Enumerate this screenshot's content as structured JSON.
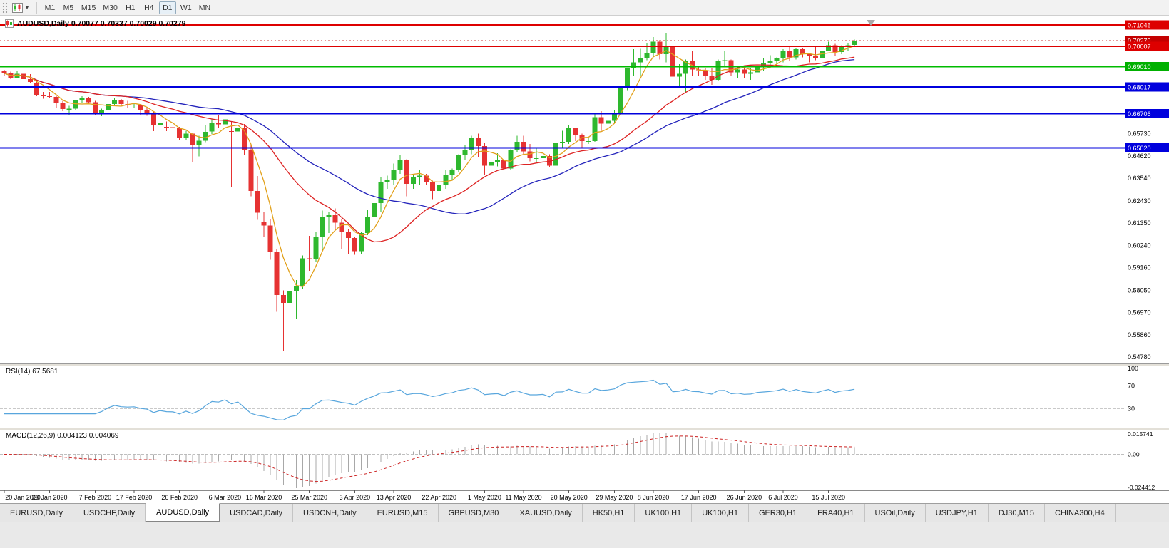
{
  "toolbar": {
    "timeframes": [
      "M1",
      "M5",
      "M15",
      "M30",
      "H1",
      "H4",
      "D1",
      "W1",
      "MN"
    ],
    "active_timeframe": "D1"
  },
  "chart": {
    "title_text": "AUDUSD,Daily 0.70077 0.70337 0.70029 0.70279"
  },
  "indicators": {
    "rsi": {
      "label": "RSI(14) 67.5681",
      "scale_labels": [
        "100",
        "70",
        "30"
      ],
      "levels": [
        70,
        30
      ],
      "line_color": "#58a6dd"
    },
    "macd": {
      "label": "MACD(12,26,9) 0.004123 0.004069",
      "scale_labels": [
        "0.015741",
        "0.00",
        "-0.024412"
      ],
      "histogram_color": "#a8a8a8",
      "signal_color": "#cc2222"
    }
  },
  "price_scale": {
    "plain_labels": [
      {
        "text": "0.65730",
        "price": 0.6573
      },
      {
        "text": "0.64620",
        "price": 0.6462
      },
      {
        "text": "0.63540",
        "price": 0.6354
      },
      {
        "text": "0.62430",
        "price": 0.6243
      },
      {
        "text": "0.61350",
        "price": 0.6135
      },
      {
        "text": "0.60240",
        "price": 0.6024
      },
      {
        "text": "0.59160",
        "price": 0.5916
      },
      {
        "text": "0.58050",
        "price": 0.5805
      },
      {
        "text": "0.56970",
        "price": 0.5697
      },
      {
        "text": "0.55860",
        "price": 0.5586
      },
      {
        "text": "0.54780",
        "price": 0.5478
      }
    ],
    "tags": [
      {
        "text": "0.71046",
        "price": 0.71046,
        "color": "#dd0000",
        "current": false
      },
      {
        "text": "0.70279",
        "price": 0.70279,
        "color": "#c40000",
        "current": true
      },
      {
        "text": "0.70007",
        "price": 0.70007,
        "color": "#dd0000",
        "current": false
      },
      {
        "text": "0.69010",
        "price": 0.6901,
        "color": "#00b000",
        "current": false
      },
      {
        "text": "0.68017",
        "price": 0.68017,
        "color": "#0000dd",
        "current": false
      },
      {
        "text": "0.66706",
        "price": 0.66706,
        "color": "#0000dd",
        "current": false
      },
      {
        "text": "0.65020",
        "price": 0.6502,
        "color": "#0000dd",
        "current": false
      }
    ]
  },
  "tabs": {
    "active_index": 2,
    "items": [
      "EURUSD,Daily",
      "USDCHF,Daily",
      "AUDUSD,Daily",
      "USDCAD,Daily",
      "USDCNH,Daily",
      "EURUSD,M15",
      "GBPUSD,M30",
      "XAUUSD,Daily",
      "HK50,H1",
      "UK100,H1",
      "UK100,H1",
      "GER30,H1",
      "FRA40,H1",
      "USOil,Daily",
      "USDJPY,H1",
      "DJ30,M15",
      "CHINA300,H4"
    ]
  },
  "chart_data": {
    "type": "candlestick",
    "symbol": "AUDUSD",
    "timeframe": "Daily",
    "ohlc_current": {
      "open": 0.70077,
      "high": 0.70337,
      "low": 0.70029,
      "close": 0.70279
    },
    "current_price": 0.70279,
    "ylim": [
      0.5454,
      0.7136
    ],
    "rsi_period": 14,
    "macd_params": {
      "fast": 12,
      "slow": 26,
      "signal": 9,
      "values": [
        0.004123,
        0.004069
      ]
    },
    "rsi_current": 67.5681,
    "colors": {
      "bull": "#2eb82e",
      "bear": "#e63232"
    },
    "moving_averages": [
      {
        "period": 5,
        "color": "#e2a11b"
      },
      {
        "period": 20,
        "color": "#dd2222"
      },
      {
        "period": 34,
        "color": "#2323bb"
      }
    ],
    "levels": [
      {
        "price": 0.71046,
        "color": "#dd0000"
      },
      {
        "price": 0.70007,
        "color": "#dd0000"
      },
      {
        "price": 0.6901,
        "color": "#00bb00"
      },
      {
        "price": 0.68017,
        "color": "#0000dd"
      },
      {
        "price": 0.66706,
        "color": "#0000dd"
      },
      {
        "price": 0.6502,
        "color": "#0000dd"
      }
    ],
    "date_ticks": [
      {
        "t": "20 Jan 2020",
        "i": 0
      },
      {
        "t": "29 Jan 2020",
        "i": 7
      },
      {
        "t": "7 Feb 2020",
        "i": 14
      },
      {
        "t": "17 Feb 2020",
        "i": 20
      },
      {
        "t": "26 Feb 2020",
        "i": 27
      },
      {
        "t": "6 Mar 2020",
        "i": 34
      },
      {
        "t": "16 Mar 2020",
        "i": 40
      },
      {
        "t": "25 Mar 2020",
        "i": 47
      },
      {
        "t": "3 Apr 2020",
        "i": 54
      },
      {
        "t": "13 Apr 2020",
        "i": 60
      },
      {
        "t": "22 Apr 2020",
        "i": 67
      },
      {
        "t": "1 May 2020",
        "i": 74
      },
      {
        "t": "11 May 2020",
        "i": 80
      },
      {
        "t": "20 May 2020",
        "i": 87
      },
      {
        "t": "29 May 2020",
        "i": 94
      },
      {
        "t": "8 Jun 2020",
        "i": 100
      },
      {
        "t": "17 Jun 2020",
        "i": 107
      },
      {
        "t": "26 Jun 2020",
        "i": 114
      },
      {
        "t": "6 Jul 2020",
        "i": 120
      },
      {
        "t": "15 Jul 2020",
        "i": 127
      }
    ],
    "candles": [
      [
        0.6878,
        0.6884,
        0.6856,
        0.6868
      ],
      [
        0.6868,
        0.6876,
        0.684,
        0.6846
      ],
      [
        0.6846,
        0.6879,
        0.6842,
        0.6866
      ],
      [
        0.6866,
        0.687,
        0.6828,
        0.684
      ],
      [
        0.684,
        0.6864,
        0.682,
        0.6826
      ],
      [
        0.682,
        0.6828,
        0.6755,
        0.6762
      ],
      [
        0.6762,
        0.6776,
        0.6744,
        0.6756
      ],
      [
        0.6756,
        0.6777,
        0.6748,
        0.6752
      ],
      [
        0.6752,
        0.6758,
        0.67,
        0.672
      ],
      [
        0.672,
        0.6733,
        0.6682,
        0.6692
      ],
      [
        0.6688,
        0.6708,
        0.6662,
        0.6694
      ],
      [
        0.6694,
        0.6738,
        0.6688,
        0.6734
      ],
      [
        0.6734,
        0.6756,
        0.6725,
        0.6746
      ],
      [
        0.6746,
        0.6753,
        0.6717,
        0.6726
      ],
      [
        0.6726,
        0.6733,
        0.6663,
        0.6672
      ],
      [
        0.6672,
        0.6694,
        0.6658,
        0.6688
      ],
      [
        0.6688,
        0.6736,
        0.6683,
        0.6718
      ],
      [
        0.6718,
        0.6745,
        0.671,
        0.6738
      ],
      [
        0.6738,
        0.6742,
        0.6705,
        0.6718
      ],
      [
        0.6718,
        0.6733,
        0.67,
        0.6712
      ],
      [
        0.6712,
        0.6722,
        0.67,
        0.6714
      ],
      [
        0.6714,
        0.6716,
        0.6665,
        0.669
      ],
      [
        0.669,
        0.6702,
        0.666,
        0.6676
      ],
      [
        0.6676,
        0.668,
        0.6585,
        0.6612
      ],
      [
        0.6612,
        0.664,
        0.6605,
        0.6626
      ],
      [
        0.6605,
        0.6632,
        0.6585,
        0.6604
      ],
      [
        0.6604,
        0.6634,
        0.6586,
        0.66
      ],
      [
        0.66,
        0.6606,
        0.6542,
        0.6552
      ],
      [
        0.6552,
        0.6586,
        0.654,
        0.6572
      ],
      [
        0.6572,
        0.6578,
        0.6434,
        0.6516
      ],
      [
        0.6516,
        0.6562,
        0.646,
        0.6538
      ],
      [
        0.6538,
        0.6612,
        0.653,
        0.6582
      ],
      [
        0.6582,
        0.6645,
        0.657,
        0.6626
      ],
      [
        0.6626,
        0.6665,
        0.66,
        0.6618
      ],
      [
        0.6618,
        0.667,
        0.6585,
        0.6642
      ],
      [
        0.6585,
        0.6632,
        0.6313,
        0.6582
      ],
      [
        0.6582,
        0.6638,
        0.6545,
        0.6602
      ],
      [
        0.6602,
        0.662,
        0.647,
        0.649
      ],
      [
        0.649,
        0.652,
        0.6265,
        0.6292
      ],
      [
        0.6292,
        0.6365,
        0.615,
        0.6186
      ],
      [
        0.614,
        0.6186,
        0.6065,
        0.6122
      ],
      [
        0.6122,
        0.6156,
        0.5955,
        0.5992
      ],
      [
        0.5992,
        0.6005,
        0.57,
        0.5782
      ],
      [
        0.5782,
        0.5805,
        0.551,
        0.5744
      ],
      [
        0.5744,
        0.587,
        0.566,
        0.5802
      ],
      [
        0.5802,
        0.5856,
        0.5665,
        0.5826
      ],
      [
        0.5826,
        0.5976,
        0.581,
        0.5962
      ],
      [
        0.5962,
        0.6072,
        0.59,
        0.5956
      ],
      [
        0.5956,
        0.609,
        0.5945,
        0.6066
      ],
      [
        0.6066,
        0.6196,
        0.6,
        0.6166
      ],
      [
        0.6166,
        0.6186,
        0.6085,
        0.6172
      ],
      [
        0.6172,
        0.6206,
        0.61,
        0.6136
      ],
      [
        0.6136,
        0.6156,
        0.6005,
        0.6092
      ],
      [
        0.6092,
        0.6106,
        0.5985,
        0.6062
      ],
      [
        0.6062,
        0.6066,
        0.598,
        0.5996
      ],
      [
        0.5996,
        0.6092,
        0.5982,
        0.6086
      ],
      [
        0.6086,
        0.62,
        0.6076,
        0.6166
      ],
      [
        0.6166,
        0.6236,
        0.6126,
        0.6232
      ],
      [
        0.6232,
        0.6362,
        0.619,
        0.6336
      ],
      [
        0.6336,
        0.6366,
        0.6302,
        0.6346
      ],
      [
        0.6346,
        0.6426,
        0.6322,
        0.6392
      ],
      [
        0.6392,
        0.647,
        0.6376,
        0.6442
      ],
      [
        0.6442,
        0.6446,
        0.6265,
        0.6326
      ],
      [
        0.6326,
        0.6372,
        0.6302,
        0.6362
      ],
      [
        0.6362,
        0.6396,
        0.6322,
        0.6366
      ],
      [
        0.6366,
        0.6376,
        0.6322,
        0.6336
      ],
      [
        0.6336,
        0.6342,
        0.6252,
        0.6292
      ],
      [
        0.6292,
        0.6332,
        0.6252,
        0.6322
      ],
      [
        0.6322,
        0.6396,
        0.6302,
        0.6372
      ],
      [
        0.6372,
        0.6402,
        0.6342,
        0.6396
      ],
      [
        0.6396,
        0.6472,
        0.6386,
        0.6466
      ],
      [
        0.6466,
        0.6516,
        0.6442,
        0.6492
      ],
      [
        0.6492,
        0.6562,
        0.6472,
        0.6552
      ],
      [
        0.6552,
        0.6572,
        0.6456,
        0.6512
      ],
      [
        0.6512,
        0.6526,
        0.6372,
        0.6416
      ],
      [
        0.6416,
        0.6452,
        0.6396,
        0.6432
      ],
      [
        0.6432,
        0.6476,
        0.6412,
        0.6442
      ],
      [
        0.6442,
        0.6452,
        0.6392,
        0.6402
      ],
      [
        0.6402,
        0.6496,
        0.6392,
        0.6492
      ],
      [
        0.6492,
        0.6562,
        0.6482,
        0.6532
      ],
      [
        0.6532,
        0.6562,
        0.6466,
        0.6486
      ],
      [
        0.6486,
        0.6522,
        0.6436,
        0.6452
      ],
      [
        0.6452,
        0.6506,
        0.6432,
        0.6452
      ],
      [
        0.6452,
        0.6466,
        0.6402,
        0.6462
      ],
      [
        0.6462,
        0.6472,
        0.6406,
        0.6416
      ],
      [
        0.6416,
        0.6536,
        0.6416,
        0.6526
      ],
      [
        0.6526,
        0.6586,
        0.6506,
        0.6532
      ],
      [
        0.6532,
        0.6616,
        0.6522,
        0.6602
      ],
      [
        0.6602,
        0.6602,
        0.6536,
        0.6566
      ],
      [
        0.6566,
        0.6572,
        0.6506,
        0.6536
      ],
      [
        0.6536,
        0.6556,
        0.6522,
        0.6536
      ],
      [
        0.6536,
        0.6676,
        0.6532,
        0.6652
      ],
      [
        0.6652,
        0.6682,
        0.6586,
        0.6622
      ],
      [
        0.6622,
        0.6666,
        0.6606,
        0.6636
      ],
      [
        0.6636,
        0.6686,
        0.6622,
        0.6666
      ],
      [
        0.6666,
        0.6816,
        0.6666,
        0.6796
      ],
      [
        0.6796,
        0.6896,
        0.6786,
        0.6892
      ],
      [
        0.6892,
        0.6986,
        0.6856,
        0.6922
      ],
      [
        0.6922,
        0.6988,
        0.6856,
        0.6942
      ],
      [
        0.6942,
        0.7016,
        0.6932,
        0.6966
      ],
      [
        0.6966,
        0.7046,
        0.6946,
        0.7022
      ],
      [
        0.7022,
        0.7032,
        0.6936,
        0.6962
      ],
      [
        0.6962,
        0.7066,
        0.6922,
        0.7002
      ],
      [
        0.7002,
        0.7012,
        0.6842,
        0.6852
      ],
      [
        0.6852,
        0.6912,
        0.6802,
        0.6866
      ],
      [
        0.6866,
        0.6936,
        0.6776,
        0.6926
      ],
      [
        0.6926,
        0.6976,
        0.6856,
        0.6886
      ],
      [
        0.6886,
        0.6906,
        0.6856,
        0.6882
      ],
      [
        0.6882,
        0.6896,
        0.6836,
        0.6856
      ],
      [
        0.6856,
        0.6892,
        0.6812,
        0.6836
      ],
      [
        0.6836,
        0.6936,
        0.6832,
        0.6926
      ],
      [
        0.6926,
        0.6978,
        0.6902,
        0.6932
      ],
      [
        0.6932,
        0.6936,
        0.6856,
        0.6872
      ],
      [
        0.6872,
        0.6906,
        0.6842,
        0.6886
      ],
      [
        0.6886,
        0.6902,
        0.6846,
        0.6866
      ],
      [
        0.6866,
        0.6892,
        0.6836,
        0.6872
      ],
      [
        0.6872,
        0.6916,
        0.6852,
        0.6906
      ],
      [
        0.6906,
        0.6942,
        0.6882,
        0.6916
      ],
      [
        0.6916,
        0.6956,
        0.6902,
        0.6926
      ],
      [
        0.6926,
        0.6946,
        0.6912,
        0.6942
      ],
      [
        0.6942,
        0.6986,
        0.6922,
        0.6976
      ],
      [
        0.6976,
        0.6996,
        0.6926,
        0.6946
      ],
      [
        0.6946,
        0.6992,
        0.6936,
        0.6986
      ],
      [
        0.6986,
        0.6992,
        0.6946,
        0.6962
      ],
      [
        0.6962,
        0.6966,
        0.6922,
        0.6952
      ],
      [
        0.6952,
        0.7002,
        0.6932,
        0.6942
      ],
      [
        0.6942,
        0.6976,
        0.6906,
        0.6976
      ],
      [
        0.6976,
        0.7022,
        0.6976,
        0.7006
      ],
      [
        0.7006,
        0.7012,
        0.6952,
        0.6972
      ],
      [
        0.6972,
        0.7006,
        0.6962,
        0.6996
      ],
      [
        0.6996,
        0.7016,
        0.6976,
        0.7006
      ],
      [
        0.70077,
        0.70337,
        0.70029,
        0.70279
      ]
    ]
  }
}
